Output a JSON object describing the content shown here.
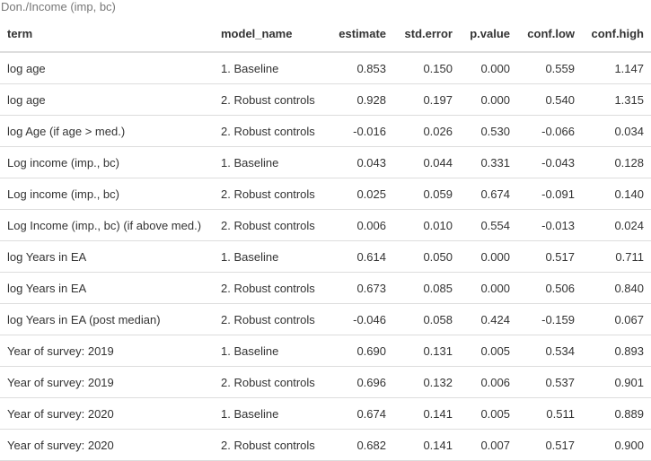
{
  "caption": "Don./Income (imp, bc)",
  "columns": [
    "term",
    "model_name",
    "estimate",
    "std.error",
    "p.value",
    "conf.low",
    "conf.high"
  ],
  "rows": [
    [
      "log age",
      "1. Baseline",
      "0.853",
      "0.150",
      "0.000",
      "0.559",
      "1.147"
    ],
    [
      "log age",
      "2. Robust controls",
      "0.928",
      "0.197",
      "0.000",
      "0.540",
      "1.315"
    ],
    [
      "log Age (if age > med.)",
      "2. Robust controls",
      "-0.016",
      "0.026",
      "0.530",
      "-0.066",
      "0.034"
    ],
    [
      "Log income (imp., bc)",
      "1. Baseline",
      "0.043",
      "0.044",
      "0.331",
      "-0.043",
      "0.128"
    ],
    [
      "Log income (imp., bc)",
      "2. Robust controls",
      "0.025",
      "0.059",
      "0.674",
      "-0.091",
      "0.140"
    ],
    [
      "Log Income (imp., bc) (if above med.)",
      "2. Robust controls",
      "0.006",
      "0.010",
      "0.554",
      "-0.013",
      "0.024"
    ],
    [
      "log Years in EA",
      "1. Baseline",
      "0.614",
      "0.050",
      "0.000",
      "0.517",
      "0.711"
    ],
    [
      "log Years in EA",
      "2. Robust controls",
      "0.673",
      "0.085",
      "0.000",
      "0.506",
      "0.840"
    ],
    [
      "log Years in EA (post median)",
      "2. Robust controls",
      "-0.046",
      "0.058",
      "0.424",
      "-0.159",
      "0.067"
    ],
    [
      "Year of survey: 2019",
      "1. Baseline",
      "0.690",
      "0.131",
      "0.005",
      "0.534",
      "0.893"
    ],
    [
      "Year of survey: 2019",
      "2. Robust controls",
      "0.696",
      "0.132",
      "0.006",
      "0.537",
      "0.901"
    ],
    [
      "Year of survey: 2020",
      "1. Baseline",
      "0.674",
      "0.141",
      "0.005",
      "0.511",
      "0.889"
    ],
    [
      "Year of survey: 2020",
      "2. Robust controls",
      "0.682",
      "0.141",
      "0.007",
      "0.517",
      "0.900"
    ]
  ]
}
